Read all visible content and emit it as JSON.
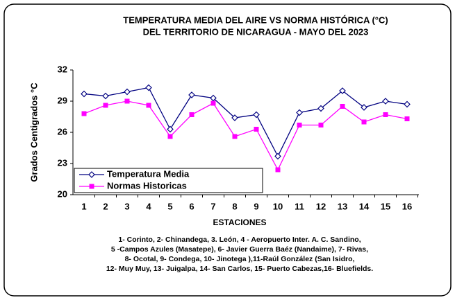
{
  "chart_data": {
    "type": "line",
    "title": [
      "TEMPERATURA  MEDIA DEL AIRE  VS  NORMA  HISTÓRICA  (°C)",
      "DEL TERRITORIO DE NICARAGUA  - MAYO DEL 2023"
    ],
    "x_label": "ESTACIONES",
    "y_label": "Grados Centigrados °C",
    "categories": [
      "1",
      "2",
      "3",
      "4",
      "5",
      "6",
      "7",
      "8",
      "9",
      "10",
      "11",
      "12",
      "13",
      "14",
      "15",
      "16"
    ],
    "series": [
      {
        "name": "Temperatura Media",
        "color": "#000080",
        "marker": "diamond",
        "values": [
          29.7,
          29.5,
          29.9,
          30.3,
          26.3,
          29.6,
          29.3,
          27.4,
          27.7,
          23.7,
          27.9,
          28.3,
          30.0,
          28.4,
          29.0,
          28.7
        ]
      },
      {
        "name": "Normas Historicas",
        "color": "#ff00ff",
        "marker": "square",
        "values": [
          27.8,
          28.6,
          29.0,
          28.6,
          25.6,
          27.7,
          28.8,
          25.6,
          26.3,
          22.4,
          26.7,
          26.7,
          28.5,
          27.0,
          27.7,
          27.3
        ]
      }
    ],
    "ylim": [
      20,
      32
    ],
    "yticks": [
      20,
      23,
      26,
      29,
      32
    ],
    "legend": "lower left",
    "footnote": [
      "1- Corinto,  2- Chinandega, 3. León, 4 - Aeropuerto Inter. A. C. Sandino,",
      "5 -Campos Azules (Masatepe), 6- Javier Guerra Baéz (Nandaime), 7- Rivas,",
      "8- Ocotal, 9- Condega, 10- Jinotega ),11-Raúl González (San Isidro,",
      "12- Muy Muy, 13- Juigalpa, 14- San Carlos, 15- Puerto Cabezas,16- Bluefields."
    ]
  }
}
